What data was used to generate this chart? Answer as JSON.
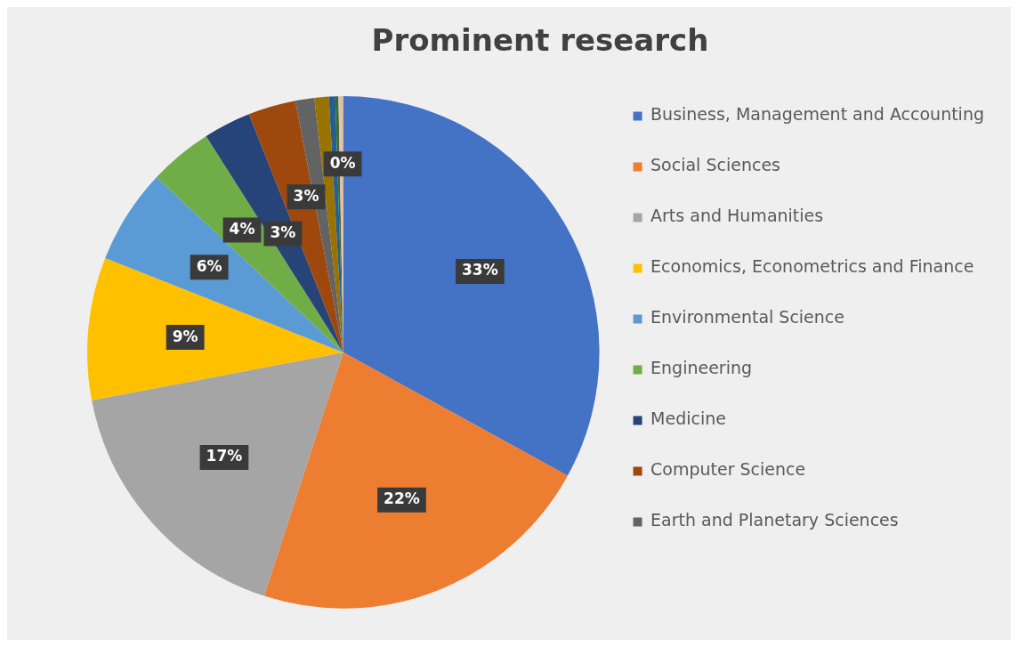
{
  "chart_data": {
    "type": "pie",
    "title": "Prominent research",
    "categories": [
      "Business, Management and Accounting",
      "Social Sciences",
      "Arts and Humanities",
      "Economics, Econometrics and Finance",
      "Environmental Science",
      "Engineering",
      "Medicine",
      "Computer Science",
      "Earth and Planetary Sciences",
      null,
      null,
      null,
      null,
      null
    ],
    "values": [
      33,
      22,
      17,
      9,
      6,
      4,
      3,
      3,
      1.2,
      0.9,
      0.4,
      0.2,
      0.15,
      0.15
    ],
    "colors": [
      "#4472c4",
      "#ed7d31",
      "#a5a5a5",
      "#ffc000",
      "#5b9bd5",
      "#70ad47",
      "#264478",
      "#9e480e",
      "#636363",
      "#997300",
      "#255e91",
      "#43682b",
      "#c9c9c9",
      "#f4b183"
    ],
    "value_labels": [
      "33%",
      "22%",
      "17%",
      "9%",
      "6%",
      "4%",
      "3%",
      "3%",
      null,
      null,
      null,
      null,
      null,
      "0%"
    ],
    "legend": "right"
  }
}
